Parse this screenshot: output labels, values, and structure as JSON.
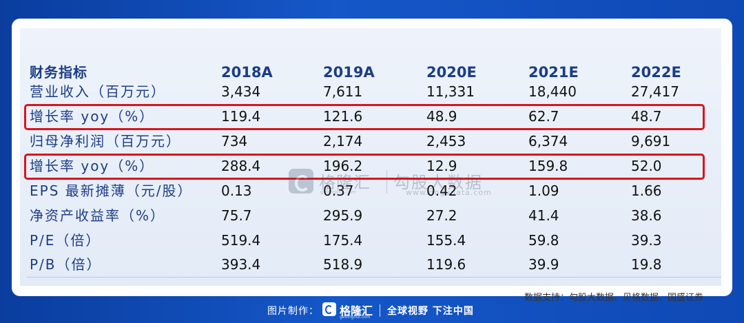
{
  "table": {
    "header": {
      "label": "财务指标",
      "years": [
        "2018A",
        "2019A",
        "2020E",
        "2021E",
        "2022E"
      ]
    },
    "rows": [
      {
        "label": "营业收入（百万元）",
        "values": [
          "3,434",
          "7,611",
          "11,331",
          "18,440",
          "27,417"
        ],
        "highlighted": false
      },
      {
        "label": "增长率 yoy（%）",
        "values": [
          "119.4",
          "121.6",
          "48.9",
          "62.7",
          "48.7"
        ],
        "highlighted": true
      },
      {
        "label": "归母净利润（百万元）",
        "values": [
          "734",
          "2,174",
          "2,453",
          "6,374",
          "9,691"
        ],
        "highlighted": false
      },
      {
        "label": "增长率 yoy（%）",
        "values": [
          "288.4",
          "196.2",
          "12.9",
          "159.8",
          "52.0"
        ],
        "highlighted": true
      },
      {
        "label": "EPS 最新摊薄（元/股）",
        "values": [
          "0.13",
          "0.37",
          "0.42",
          "1.09",
          "1.66"
        ],
        "highlighted": false
      },
      {
        "label": "净资产收益率（%）",
        "values": [
          "75.7",
          "295.9",
          "27.2",
          "41.4",
          "38.6"
        ],
        "highlighted": false
      },
      {
        "label": "P/E（倍）",
        "values": [
          "519.4",
          "175.4",
          "155.4",
          "59.8",
          "39.3"
        ],
        "highlighted": false
      },
      {
        "label": "P/B（倍）",
        "values": [
          "393.4",
          "518.9",
          "119.6",
          "39.9",
          "19.8"
        ],
        "highlighted": false
      }
    ],
    "source": "数据支持：勾股大数据、贝格数据、国盛证券"
  },
  "watermark": {
    "brand": "格隆汇",
    "brand_small": "gelonghui.com",
    "product": "勾股大数据",
    "url": "www.gogudata.com"
  },
  "footer": {
    "credit": "图片制作：",
    "brand": "格隆汇",
    "brand_small": "gelonghui.com",
    "slogan": "全球视野 下注中国"
  },
  "colors": {
    "background": "#1557c8",
    "highlight": "#d9141c",
    "label_text": "#1c3d86"
  }
}
